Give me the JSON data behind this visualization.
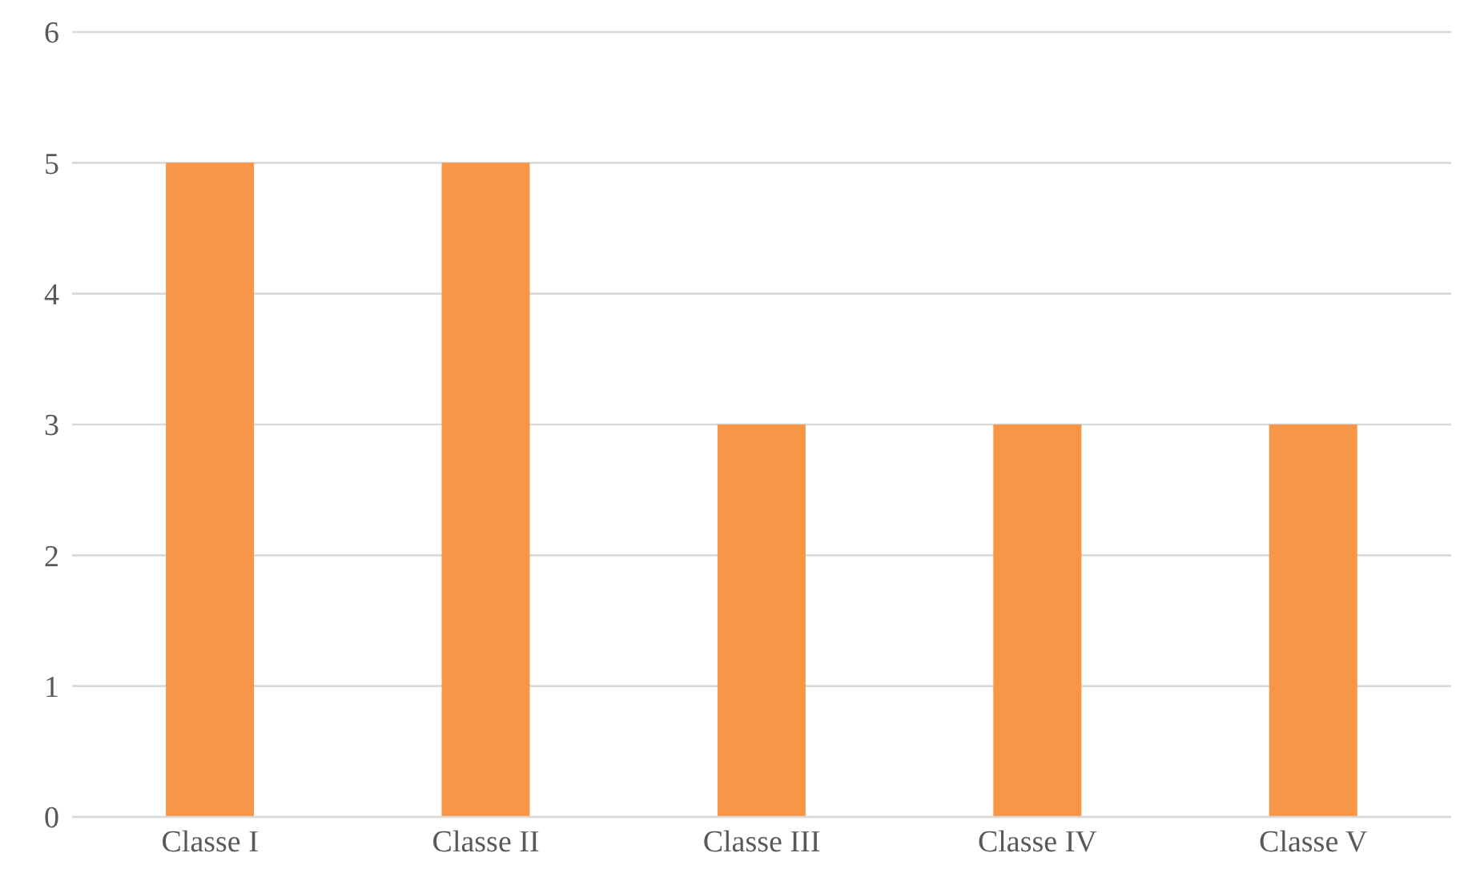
{
  "chart_data": {
    "type": "bar",
    "categories": [
      "Classe I",
      "Classe II",
      "Classe III",
      "Classe IV",
      "Classe V"
    ],
    "values": [
      5,
      5,
      3,
      3,
      3
    ],
    "color": "#f79646",
    "ylim": [
      0,
      6
    ],
    "yticks": [
      0,
      1,
      2,
      3,
      4,
      5,
      6
    ],
    "grid": "y"
  }
}
